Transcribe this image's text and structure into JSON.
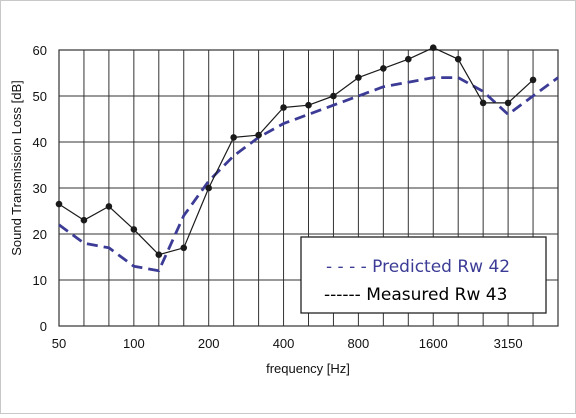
{
  "chart_data": {
    "type": "line",
    "title": "",
    "xlabel": "frequency [Hz]",
    "ylabel": "Sound Transmission Loss [dB]",
    "ylim": [
      0,
      60
    ],
    "y_ticks": [
      0,
      10,
      20,
      30,
      40,
      50,
      60
    ],
    "x_bands_hz": [
      50,
      63,
      80,
      100,
      125,
      160,
      200,
      250,
      315,
      400,
      500,
      630,
      800,
      1000,
      1250,
      1600,
      2000,
      2500,
      3150,
      4000,
      5000
    ],
    "x_tick_labels": [
      {
        "band": 50,
        "label": "50"
      },
      {
        "band": 100,
        "label": "100"
      },
      {
        "band": 200,
        "label": "200"
      },
      {
        "band": 400,
        "label": "400"
      },
      {
        "band": 800,
        "label": "800"
      },
      {
        "band": 1600,
        "label": "1600"
      },
      {
        "band": 3150,
        "label": "3150"
      }
    ],
    "grid": true,
    "legend_placement": "bottom-right",
    "series": [
      {
        "name": "Predicted Rw 42",
        "legend_label": "- - - - Predicted Rw 42",
        "color": "#3c3c96",
        "style": "dashed",
        "markers": false,
        "x": [
          50,
          63,
          80,
          100,
          125,
          160,
          200,
          250,
          315,
          400,
          500,
          630,
          800,
          1000,
          1250,
          1600,
          2000,
          2500,
          3150,
          4000,
          5000
        ],
        "values": [
          22,
          18,
          17,
          13,
          12,
          24,
          31.5,
          37,
          41,
          44,
          46,
          48,
          50,
          52,
          53,
          54,
          54,
          51,
          46,
          50,
          54
        ]
      },
      {
        "name": "Measured Rw 43",
        "legend_label": "------ Measured Rw 43",
        "color": "#1a1a1a",
        "style": "solid",
        "markers": true,
        "x": [
          50,
          63,
          80,
          100,
          125,
          160,
          200,
          250,
          315,
          400,
          500,
          630,
          800,
          1000,
          1250,
          1600,
          2000,
          2500,
          3150,
          4000
        ],
        "values": [
          26.5,
          23,
          26,
          21,
          15.5,
          17,
          30,
          41,
          41.5,
          47.5,
          48,
          50,
          54,
          56,
          58,
          60.5,
          58,
          48.5,
          48.5,
          53.5
        ]
      }
    ]
  }
}
